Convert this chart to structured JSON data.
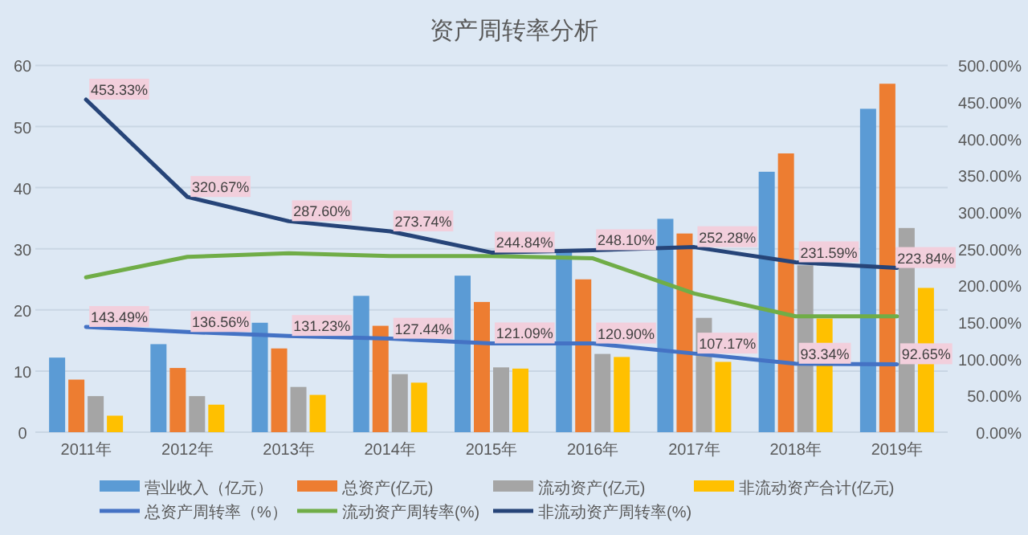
{
  "chart_data": {
    "type": "bar",
    "title": "资产周转率分析",
    "categories": [
      "2011年",
      "2012年",
      "2013年",
      "2014年",
      "2015年",
      "2016年",
      "2017年",
      "2018年",
      "2019年"
    ],
    "series": [
      {
        "name": "营业收入（亿元）",
        "color": "#5b9bd5",
        "values": [
          12.2,
          14.4,
          17.9,
          22.3,
          25.6,
          29.8,
          34.9,
          42.6,
          52.9
        ]
      },
      {
        "name": "总资产(亿元)",
        "color": "#ed7d31",
        "values": [
          8.6,
          10.5,
          13.7,
          17.4,
          21.3,
          25.0,
          32.5,
          45.6,
          57.0
        ]
      },
      {
        "name": "流动资产(亿元)",
        "color": "#a5a5a5",
        "values": [
          5.9,
          5.9,
          7.4,
          9.5,
          10.6,
          12.8,
          18.7,
          27.3,
          33.4
        ]
      },
      {
        "name": "非流动资产合计(亿元)",
        "color": "#ffc000",
        "values": [
          2.7,
          4.5,
          6.1,
          8.1,
          10.4,
          12.3,
          11.5,
          18.6,
          23.6
        ]
      },
      {
        "name": "总资产周转率（%）",
        "type": "line",
        "axis": "y2",
        "color": "#4472c4",
        "values": [
          143.49,
          136.56,
          131.23,
          127.44,
          121.09,
          120.9,
          107.17,
          93.34,
          92.65
        ],
        "value_labels": [
          "143.49%",
          "136.56%",
          "131.23%",
          "127.44%",
          "121.09%",
          "120.90%",
          "107.17%",
          "93.34%",
          "92.65%"
        ]
      },
      {
        "name": "流动资产周转率(%)",
        "type": "line",
        "axis": "y2",
        "color": "#70ad47",
        "values": [
          211,
          239,
          244,
          240,
          240,
          237,
          189,
          158,
          158
        ]
      },
      {
        "name": "非流动资产周转率(%)",
        "type": "line",
        "axis": "y2",
        "color": "#264478",
        "values": [
          453.33,
          320.67,
          287.6,
          273.74,
          244.84,
          248.1,
          252.28,
          231.59,
          223.84
        ],
        "value_labels": [
          "453.33%",
          "320.67%",
          "287.60%",
          "273.74%",
          "244.84%",
          "248.10%",
          "252.28%",
          "231.59%",
          "223.84%"
        ]
      }
    ],
    "ylim": [
      0,
      60
    ],
    "yticks": [
      0,
      10,
      20,
      30,
      40,
      50,
      60
    ],
    "y2lim": [
      0,
      500
    ],
    "y2ticks": [
      {
        "value": 0,
        "label": "0.00%"
      },
      {
        "value": 50,
        "label": "50.00%"
      },
      {
        "value": 100,
        "label": "100.00%"
      },
      {
        "value": 150,
        "label": "150.00%"
      },
      {
        "value": 200,
        "label": "200.00%"
      },
      {
        "value": 250,
        "label": "250.00%"
      },
      {
        "value": 300,
        "label": "300.00%"
      },
      {
        "value": 350,
        "label": "350.00%"
      },
      {
        "value": 400,
        "label": "400.00%"
      },
      {
        "value": 450,
        "label": "450.00%"
      },
      {
        "value": 500,
        "label": "500.00%"
      }
    ],
    "grid": "y",
    "legend": "bottom",
    "marker": "none",
    "line_style": "solid"
  }
}
